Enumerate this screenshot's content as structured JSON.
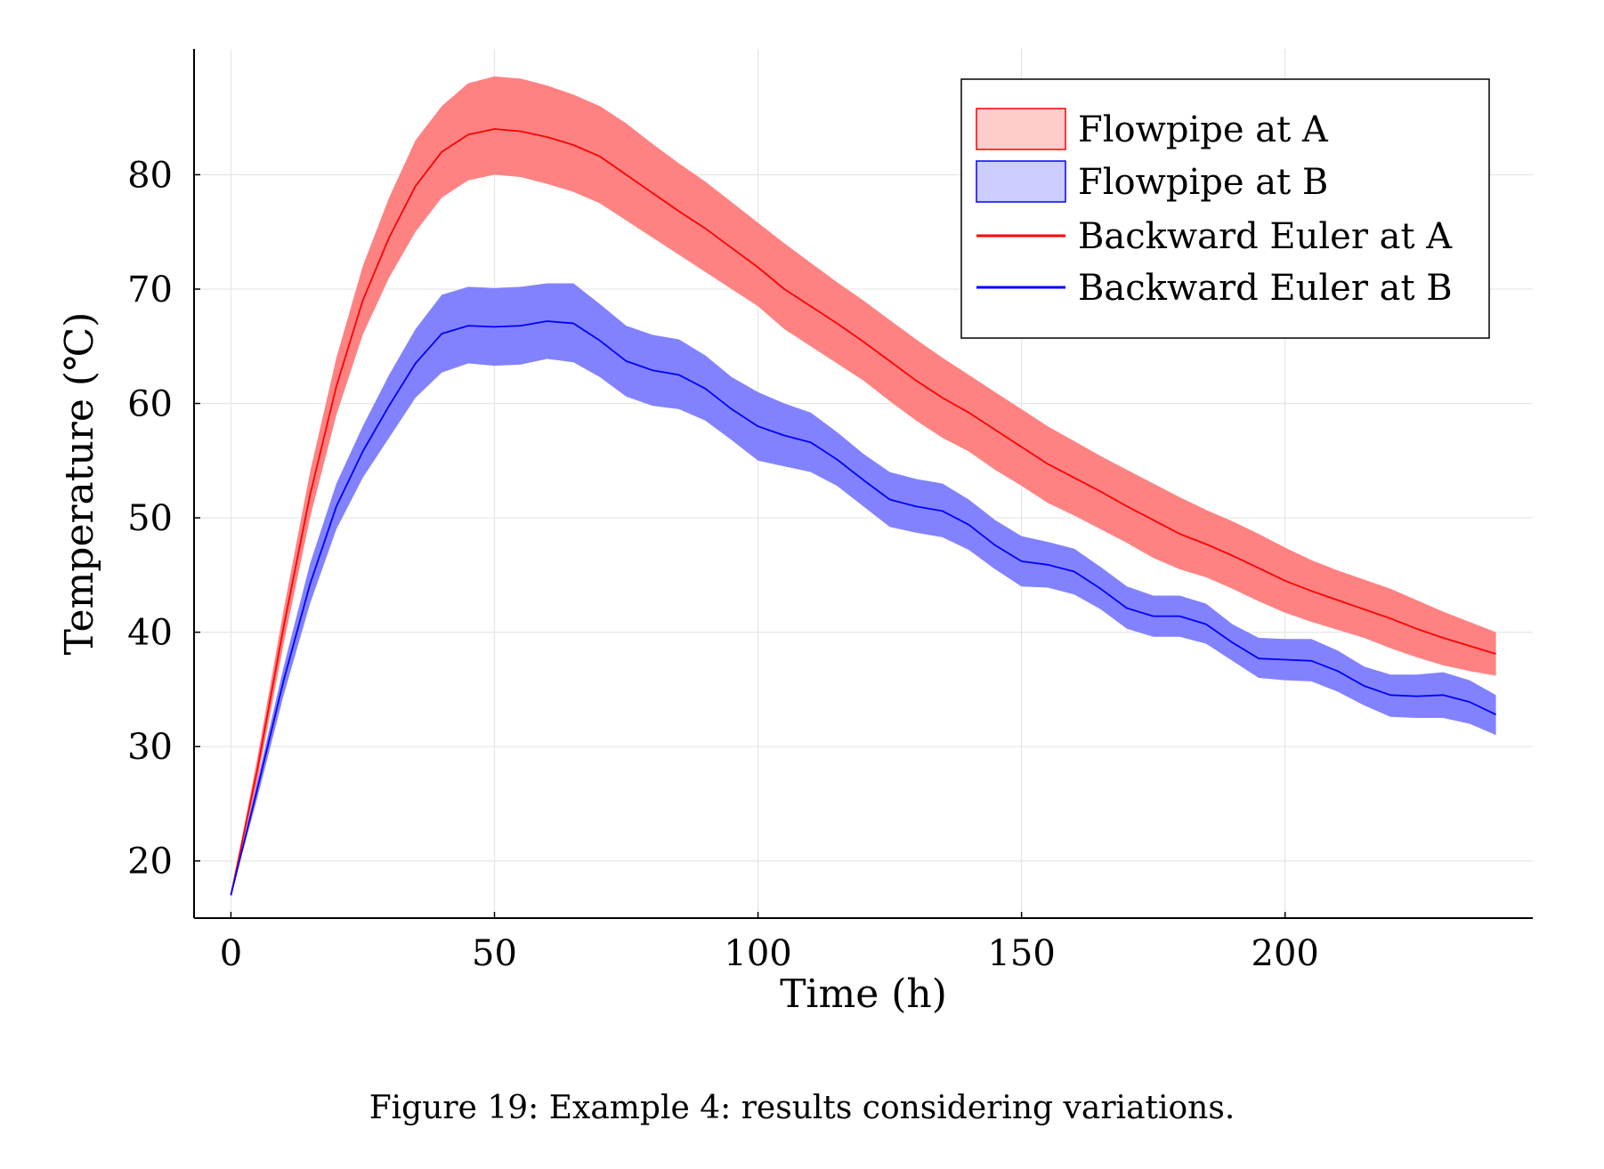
{
  "caption": "Figure 19: Example 4: results considering variations.",
  "chart_data": {
    "type": "line",
    "xlabel": "Time (h)",
    "ylabel": "Temperature (℃)",
    "xlim": [
      -7,
      247
    ],
    "ylim": [
      15,
      91
    ],
    "xticks": [
      0,
      50,
      100,
      150,
      200
    ],
    "yticks": [
      20,
      30,
      40,
      50,
      60,
      70,
      80
    ],
    "grid": true,
    "legend_position": "top-right",
    "colors": {
      "A": "#ff0000",
      "B": "#0000ff",
      "bandA": "#ff8282",
      "bandB": "#8282ff",
      "legBandA": "#ffcccc",
      "legBandB": "#ccccff"
    },
    "bands": [
      {
        "name": "Flowpipe at A",
        "x": [
          0,
          5,
          10,
          15,
          20,
          25,
          30,
          35,
          40,
          45,
          50,
          55,
          60,
          65,
          70,
          75,
          80,
          85,
          90,
          95,
          100,
          105,
          110,
          115,
          120,
          125,
          130,
          135,
          140,
          145,
          150,
          155,
          160,
          165,
          170,
          175,
          180,
          185,
          190,
          195,
          200,
          205,
          210,
          215,
          220,
          225,
          230,
          235,
          240
        ],
        "lower": [
          17,
          27,
          39,
          50,
          59,
          66,
          71,
          75,
          78,
          79.5,
          80,
          79.8,
          79.2,
          78.5,
          77.5,
          76,
          74.5,
          73,
          71.5,
          70,
          68.5,
          66.5,
          65,
          63.5,
          62,
          60.2,
          58.5,
          57,
          55.8,
          54.2,
          52.8,
          51.3,
          50.2,
          49,
          47.8,
          46.5,
          45.5,
          44.8,
          43.8,
          42.7,
          41.7,
          40.9,
          40.2,
          39.5,
          38.6,
          37.8,
          37.1,
          36.6,
          36.2
        ],
        "upper": [
          17,
          29,
          42,
          54,
          64,
          72,
          78,
          83,
          86,
          88,
          88.6,
          88.4,
          87.8,
          87,
          86,
          84.5,
          82.7,
          81,
          79.4,
          77.6,
          75.8,
          74,
          72.3,
          70.6,
          69,
          67.3,
          65.6,
          64,
          62.5,
          61,
          59.5,
          58,
          56.7,
          55.4,
          54.2,
          53,
          51.8,
          50.7,
          49.7,
          48.6,
          47.4,
          46.3,
          45.4,
          44.6,
          43.8,
          42.8,
          41.8,
          40.9,
          40
        ]
      },
      {
        "name": "Flowpipe at B",
        "x": [
          0,
          5,
          10,
          15,
          20,
          25,
          30,
          35,
          40,
          45,
          50,
          55,
          60,
          65,
          70,
          75,
          80,
          85,
          90,
          95,
          100,
          105,
          110,
          115,
          120,
          125,
          130,
          135,
          140,
          145,
          150,
          155,
          160,
          165,
          170,
          175,
          180,
          185,
          190,
          195,
          200,
          205,
          210,
          215,
          220,
          225,
          230,
          235,
          240
        ],
        "lower": [
          17,
          25.5,
          34.5,
          42.5,
          49,
          53.5,
          57,
          60.5,
          62.7,
          63.5,
          63.3,
          63.4,
          63.9,
          63.6,
          62.3,
          60.6,
          59.8,
          59.5,
          58.5,
          56.8,
          55,
          54.5,
          54,
          52.8,
          51,
          49.2,
          48.7,
          48.3,
          47.2,
          45.5,
          44,
          43.9,
          43.3,
          42,
          40.3,
          39.6,
          39.6,
          39,
          37.5,
          36,
          35.8,
          35.7,
          34.8,
          33.6,
          32.6,
          32.5,
          32.5,
          32,
          31
        ],
        "upper": [
          17,
          27,
          37,
          46,
          53,
          58,
          62.5,
          66.5,
          69.5,
          70.2,
          70.1,
          70.2,
          70.5,
          70.5,
          68.7,
          66.8,
          66,
          65.6,
          64.2,
          62.3,
          61,
          60,
          59.2,
          57.5,
          55.6,
          54,
          53.4,
          53,
          51.6,
          49.8,
          48.4,
          47.9,
          47.3,
          45.7,
          44,
          43.2,
          43.2,
          42.5,
          40.7,
          39.5,
          39.4,
          39.4,
          38.4,
          37,
          36.3,
          36.3,
          36.5,
          35.8,
          34.5
        ]
      }
    ],
    "series": [
      {
        "name": "Backward Euler at A",
        "x": [
          0,
          5,
          10,
          15,
          20,
          25,
          30,
          35,
          40,
          45,
          50,
          55,
          60,
          65,
          70,
          75,
          80,
          85,
          90,
          95,
          100,
          105,
          110,
          115,
          120,
          125,
          130,
          135,
          140,
          145,
          150,
          155,
          160,
          165,
          170,
          175,
          180,
          185,
          190,
          195,
          200,
          205,
          210,
          215,
          220,
          225,
          230,
          235,
          240
        ],
        "y": [
          17,
          28,
          40.5,
          52,
          61.5,
          69,
          74.5,
          79,
          82,
          83.5,
          84,
          83.8,
          83.3,
          82.6,
          81.6,
          80,
          78.4,
          76.8,
          75.3,
          73.6,
          71.9,
          70,
          68.5,
          67,
          65.4,
          63.7,
          62,
          60.5,
          59.2,
          57.7,
          56.2,
          54.7,
          53.5,
          52.3,
          51,
          49.8,
          48.6,
          47.7,
          46.7,
          45.6,
          44.5,
          43.6,
          42.8,
          42,
          41.2,
          40.3,
          39.5,
          38.8,
          38.1
        ]
      },
      {
        "name": "Backward Euler at B",
        "x": [
          0,
          5,
          10,
          15,
          20,
          25,
          30,
          35,
          40,
          45,
          50,
          55,
          60,
          65,
          70,
          75,
          80,
          85,
          90,
          95,
          100,
          105,
          110,
          115,
          120,
          125,
          130,
          135,
          140,
          145,
          150,
          155,
          160,
          165,
          170,
          175,
          180,
          185,
          190,
          195,
          200,
          205,
          210,
          215,
          220,
          225,
          230,
          235,
          240
        ],
        "y": [
          17,
          26.3,
          35.8,
          44.2,
          51,
          55.8,
          59.8,
          63.5,
          66.1,
          66.8,
          66.7,
          66.8,
          67.2,
          67,
          65.5,
          63.7,
          62.9,
          62.5,
          61.3,
          59.5,
          58,
          57.2,
          56.6,
          55.1,
          53.3,
          51.6,
          51,
          50.6,
          49.4,
          47.6,
          46.2,
          45.9,
          45.3,
          43.8,
          42.1,
          41.4,
          41.4,
          40.7,
          39.1,
          37.7,
          37.6,
          37.5,
          36.6,
          35.3,
          34.5,
          34.4,
          34.5,
          33.9,
          32.8
        ]
      }
    ]
  }
}
